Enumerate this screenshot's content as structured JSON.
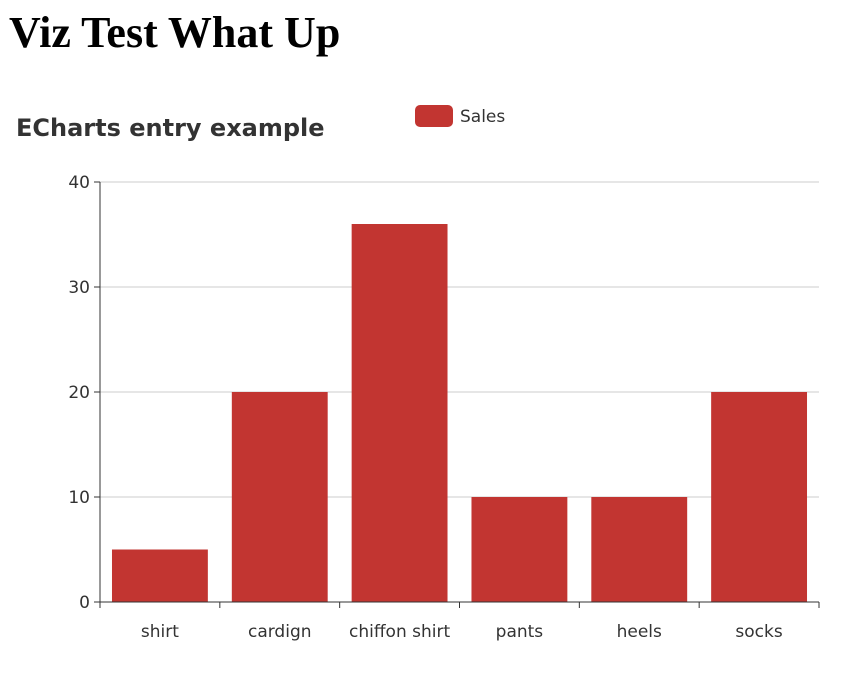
{
  "page": {
    "heading": "Viz Test What Up"
  },
  "chart_data": {
    "type": "bar",
    "title": "ECharts entry example",
    "categories": [
      "shirt",
      "cardign",
      "chiffon shirt",
      "pants",
      "heels",
      "socks"
    ],
    "series": [
      {
        "name": "Sales",
        "values": [
          5,
          20,
          36,
          10,
          10,
          20
        ],
        "color": "#c23531"
      }
    ],
    "ylim": [
      0,
      40
    ],
    "yticks": [
      0,
      10,
      20,
      30,
      40
    ],
    "xlabel": "",
    "ylabel": "",
    "grid": true,
    "legend_position": "top-center"
  }
}
